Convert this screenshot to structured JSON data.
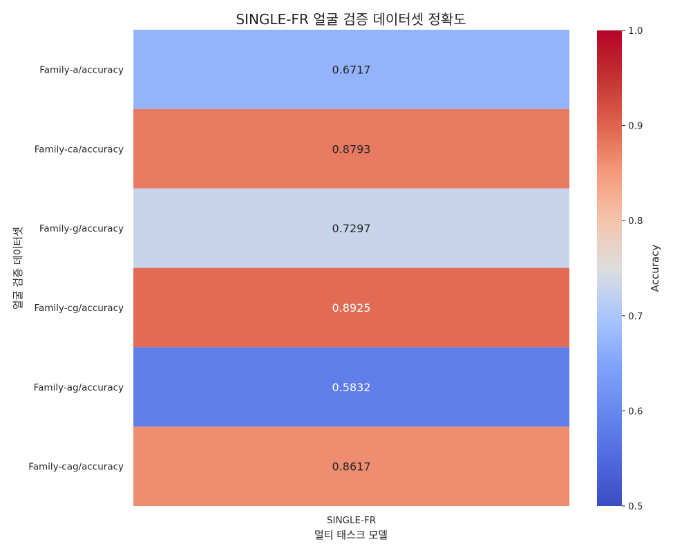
{
  "chart_data": {
    "type": "heatmap",
    "title": "SINGLE-FR 얼굴 검증 데이터셋 정확도",
    "xlabel": "멀티 태스크 모델",
    "ylabel": "얼굴 검증 데이터셋",
    "x_categories": [
      "SINGLE-FR"
    ],
    "y_categories": [
      "Family-a/accuracy",
      "Family-ca/accuracy",
      "Family-g/accuracy",
      "Family-cg/accuracy",
      "Family-ag/accuracy",
      "Family-cag/accuracy"
    ],
    "values": [
      [
        0.6717
      ],
      [
        0.8793
      ],
      [
        0.7297
      ],
      [
        0.8925
      ],
      [
        0.5832
      ],
      [
        0.8617
      ]
    ],
    "value_labels": [
      [
        "0.6717"
      ],
      [
        "0.8793"
      ],
      [
        "0.7297"
      ],
      [
        "0.8925"
      ],
      [
        "0.5832"
      ],
      [
        "0.8617"
      ]
    ],
    "colorbar": {
      "label": "Accuracy",
      "range": [
        0.5,
        1.0
      ],
      "colormap": "coolwarm",
      "ticks": [
        "0.5",
        "0.6",
        "0.7",
        "0.8",
        "0.9",
        "1.0"
      ]
    }
  }
}
